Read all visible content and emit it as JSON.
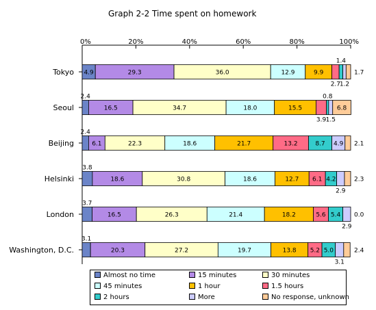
{
  "chart_data": {
    "type": "bar",
    "stacked": "percent",
    "orientation": "horizontal",
    "title": "Graph 2-2  Time spent on homework",
    "x_tick_labels": [
      "0%",
      "20%",
      "40%",
      "60%",
      "80%",
      "100%"
    ],
    "xlim": [
      0,
      100
    ],
    "legend_position": "bottom",
    "categories": [
      "Tokyo",
      "Seoul",
      "Beijing",
      "Helsinki",
      "London",
      "Washington, D.C."
    ],
    "series": [
      {
        "name": "Almost no time",
        "color": "#6b84c8",
        "values": [
          4.9,
          2.4,
          2.4,
          3.8,
          3.7,
          3.1
        ],
        "labels": [
          "4.9",
          "2.4",
          "2.4",
          "3.8",
          "3.7",
          "3.1"
        ]
      },
      {
        "name": "15 minutes",
        "color": "#b38ae6",
        "values": [
          29.3,
          16.5,
          6.1,
          18.6,
          16.5,
          20.3
        ],
        "labels": [
          "29.3",
          "16.5",
          "6.1",
          "18.6",
          "16.5",
          "20.3"
        ]
      },
      {
        "name": "30 minutes",
        "color": "#ffffc8",
        "values": [
          36.0,
          34.7,
          22.3,
          30.8,
          26.3,
          27.2
        ],
        "labels": [
          "36.0",
          "34.7",
          "22.3",
          "30.8",
          "26.3",
          "27.2"
        ]
      },
      {
        "name": "45 minutes",
        "color": "#ccffff",
        "values": [
          12.9,
          18.0,
          18.6,
          18.6,
          21.4,
          19.7
        ],
        "labels": [
          "12.9",
          "18.0",
          "18.6",
          "18.6",
          "21.4",
          "19.7"
        ]
      },
      {
        "name": "1 hour",
        "color": "#ffc000",
        "values": [
          9.9,
          15.5,
          21.7,
          12.7,
          18.2,
          13.8
        ],
        "labels": [
          "9.9",
          "15.5",
          "21.7",
          "12.7",
          "18.2",
          "13.8"
        ]
      },
      {
        "name": "1.5 hours",
        "color": "#ff6b86",
        "values": [
          2.7,
          3.9,
          13.2,
          6.1,
          5.6,
          5.2
        ],
        "labels": [
          "2.7",
          "3.9",
          "13.2",
          "6.1",
          "5.6",
          "5.2"
        ]
      },
      {
        "name": "2 hours",
        "color": "#33cccc",
        "values": [
          1.4,
          0.8,
          8.7,
          4.2,
          5.4,
          5.0
        ],
        "labels": [
          "1.4",
          "0.8",
          "8.7",
          "4.2",
          "5.4",
          "5.0"
        ]
      },
      {
        "name": "More",
        "color": "#ccccff",
        "values": [
          1.2,
          1.5,
          4.9,
          2.9,
          2.9,
          3.1
        ],
        "labels": [
          "1.2",
          "1.5",
          "4.9",
          "2.9",
          "2.9",
          "3.1"
        ]
      },
      {
        "name": "No response, unknown",
        "color": "#ffcc99",
        "values": [
          1.7,
          6.8,
          2.1,
          2.3,
          0.0,
          2.4
        ],
        "labels": [
          "1.7",
          "6.8",
          "2.1",
          "2.3",
          "0.0",
          "2.4"
        ]
      }
    ]
  }
}
